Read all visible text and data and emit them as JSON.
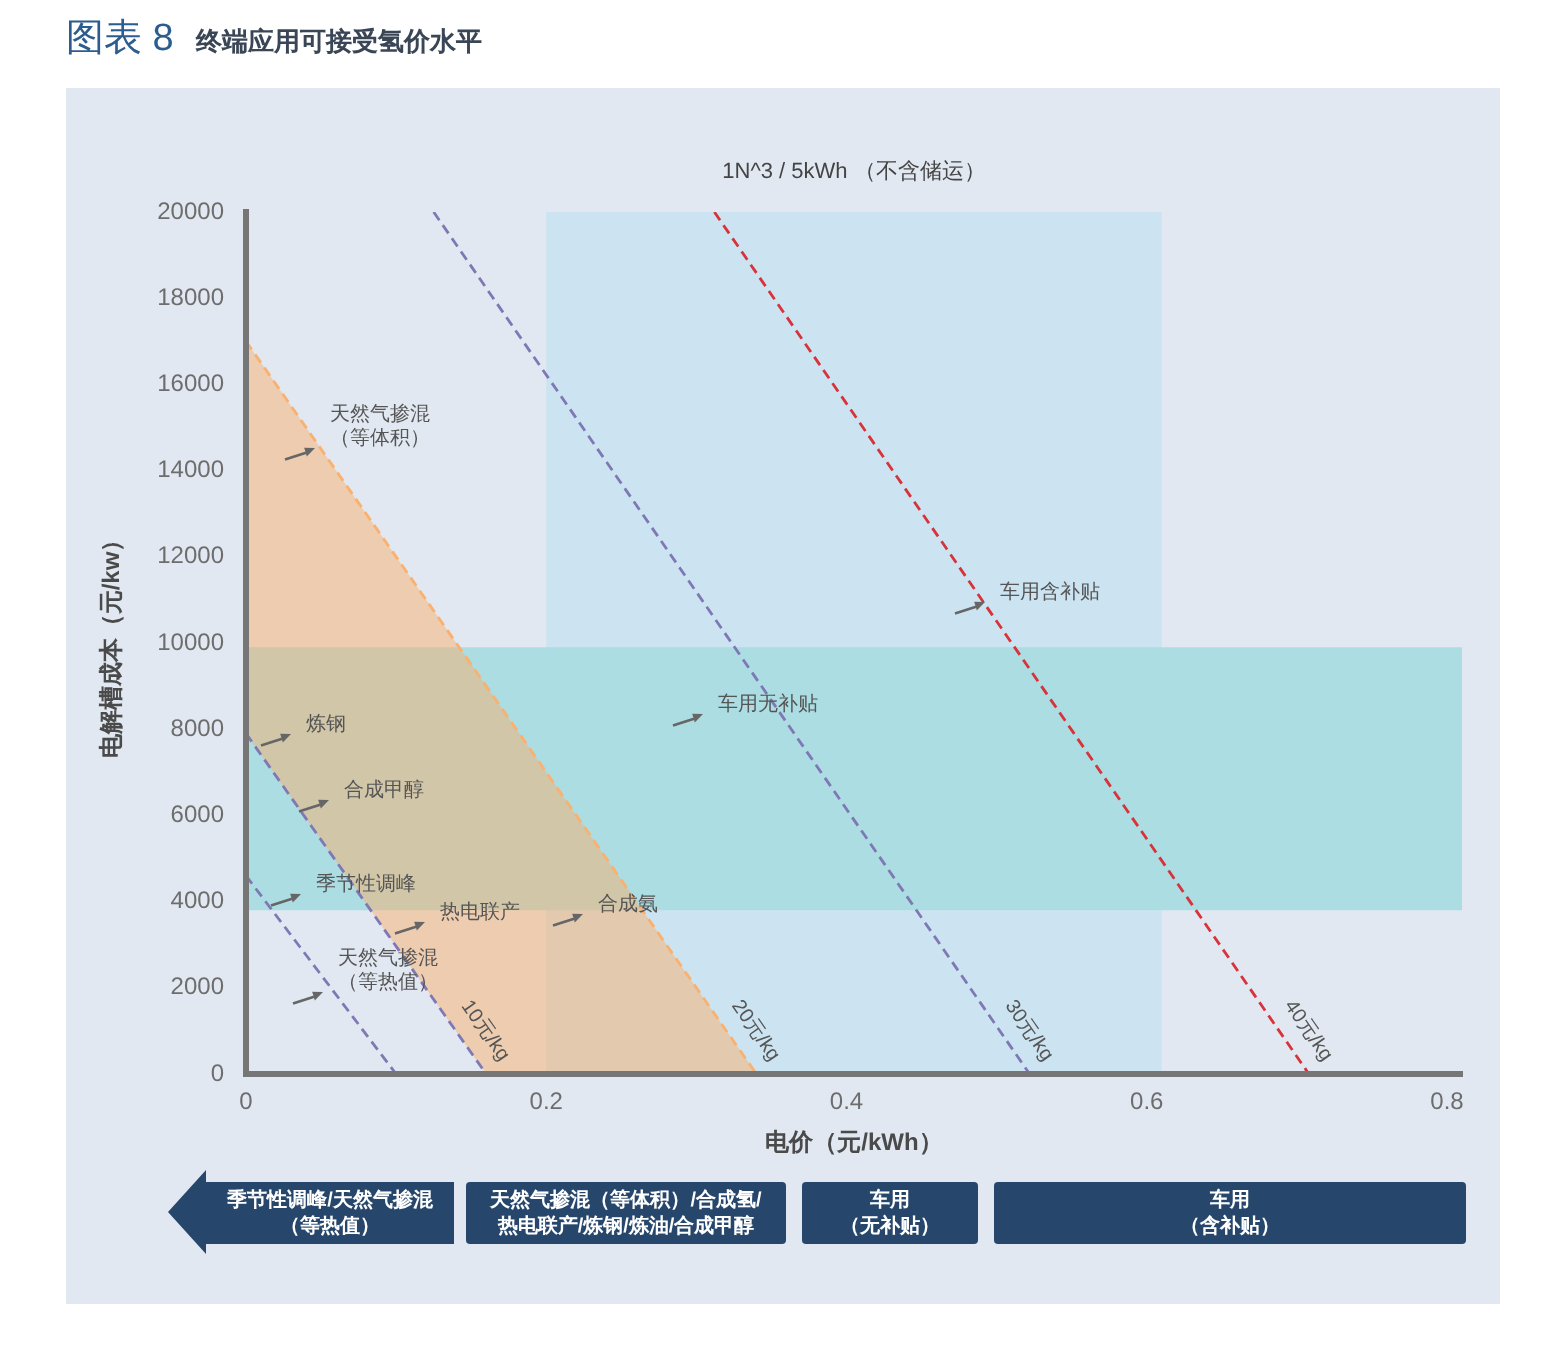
{
  "chart_data": {
    "type": "line",
    "title": "图表 8 终端应用可接受氢价水平",
    "subtitle": "1N^3 / 5kWh （不含储运）",
    "xlabel": "电价（元/kWh）",
    "ylabel": "电解槽成本（元/kw）",
    "xlim": [
      0,
      0.81
    ],
    "ylim": [
      0,
      20000
    ],
    "xticks": [
      0,
      0.2,
      0.4,
      0.6,
      0.8
    ],
    "yticks": [
      0,
      2000,
      4000,
      6000,
      8000,
      10000,
      12000,
      14000,
      16000,
      18000,
      20000
    ],
    "line_style": "dashed",
    "series": [
      {
        "color": "#7f78b5",
        "x": [
          0,
          0.1
        ],
        "values": [
          4600,
          0
        ]
      },
      {
        "name": "10元/kg",
        "color": "#7f78b5",
        "x": [
          0,
          0.16
        ],
        "values": [
          7900,
          0
        ]
      },
      {
        "name": "20元/kg",
        "color": "#fab06e",
        "x": [
          0,
          0.16,
          0.34
        ],
        "values": [
          17000,
          9000,
          0
        ],
        "lower": [
          7900,
          0,
          0
        ],
        "upper": [
          17000,
          9000,
          0
        ]
      },
      {
        "name": "30元/kg",
        "color": "#7f78b5",
        "x": [
          0.125,
          0.522
        ],
        "values": [
          20000,
          0
        ]
      },
      {
        "name": "40元/kg",
        "color": "#d8323a",
        "x": [
          0.312,
          0.708
        ],
        "values": [
          20000,
          0
        ]
      }
    ],
    "bands": [
      {
        "axis": "x",
        "from": 0.2,
        "to": 0.61,
        "color": "#cce4f1"
      },
      {
        "axis": "y",
        "from": 3800,
        "to": 9900,
        "color": "#abdde3"
      }
    ],
    "annotations": [
      "天然气掺混（等体积）",
      "炼钢",
      "合成甲醇",
      "季节性调峰",
      "热电联产",
      "合成氨",
      "天然气掺混（等热值）",
      "车用无补贴",
      "车用含补贴",
      "季节性调峰/天然气掺混（等热值）",
      "天然气掺混（等体积）/合成氢/热电联产/炼钢/炼油/合成甲醇",
      "车用（无补贴）",
      "车用（含补贴）"
    ]
  }
}
